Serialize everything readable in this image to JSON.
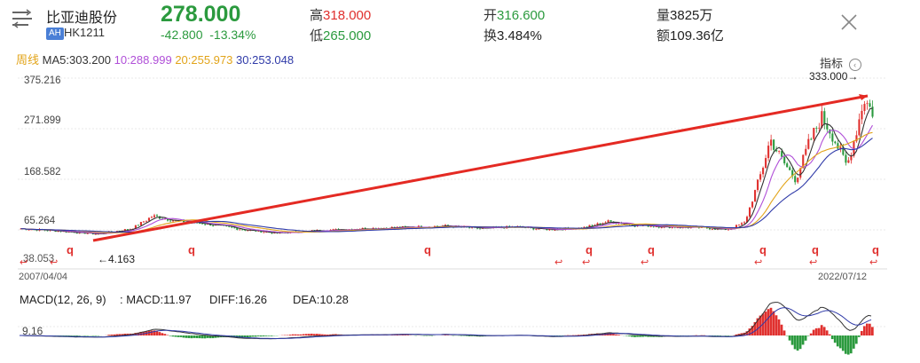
{
  "header": {
    "stock_name": "比亚迪股份",
    "market_badge": "AH",
    "code": "HK1211",
    "price": "278.000",
    "change": "-42.800",
    "change_pct": "-13.34%",
    "high_label": "高",
    "high_value": "318.000",
    "low_label": "低",
    "low_value": "265.000",
    "open_label": "开",
    "open_value": "316.600",
    "turnover_rate_label": "换",
    "turnover_rate_value": "3.484%",
    "volume_label": "量",
    "volume_value": "3825万",
    "amount_label": "额",
    "amount_value": "109.36亿",
    "menu_icon": "menu-icon",
    "close_icon": "close-icon"
  },
  "indicators": {
    "period": "周线",
    "ma5": "MA5:303.200",
    "ma10": "10:288.999",
    "ma20": "20:255.973",
    "ma30": "30:253.048",
    "indicator_button": "指标"
  },
  "colors": {
    "up": "#e0302e",
    "down": "#2b9a3e",
    "ma5": "#333333",
    "ma10": "#b04fd8",
    "ma20": "#e2a41a",
    "ma30": "#2f3aa8"
  },
  "chart_data": [
    {
      "type": "candlestick",
      "title": "",
      "x_range": [
        "2007/04/04",
        "2022/07/12"
      ],
      "y_ticks": [
        "375.216",
        "271.899",
        "168.582",
        "65.264"
      ],
      "ylim": [
        38.053,
        375.216
      ],
      "annotations": {
        "max_label": "333.000→",
        "min_label": "←4.163",
        "left_low_label": "38.053",
        "start_date": "2007/04/04",
        "end_date": "2022/07/12",
        "marker_symbol": "q",
        "arrow_symbol": "↩"
      },
      "series": [
        {
          "name": "close_path",
          "points": [
            [
              "2007",
              40
            ],
            [
              "2008",
              30
            ],
            [
              "2009",
              45
            ],
            [
              "2009.5",
              70
            ],
            [
              "2010",
              62
            ],
            [
              "2011",
              42
            ],
            [
              "2012",
              30
            ],
            [
              "2013",
              38
            ],
            [
              "2014",
              45
            ],
            [
              "2015",
              50
            ],
            [
              "2016",
              40
            ],
            [
              "2017",
              48
            ],
            [
              "2018",
              50
            ],
            [
              "2019",
              45
            ],
            [
              "2020",
              42
            ],
            [
              "2020.5",
              60
            ],
            [
              "2021",
              230
            ],
            [
              "2021.5",
              160
            ],
            [
              "2022",
              280
            ],
            [
              "2022.5",
              320
            ]
          ]
        }
      ]
    },
    {
      "type": "bar",
      "title": "MACD(12, 26, 9)",
      "macd": "MACD:11.97",
      "diff": "DIFF:16.26",
      "dea": "DEA:10.28",
      "y_tick": "9.16"
    }
  ]
}
